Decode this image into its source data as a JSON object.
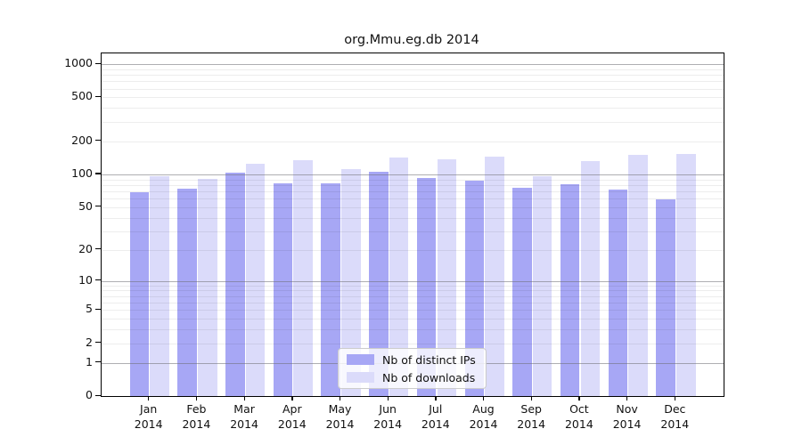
{
  "page": {
    "background": "#ffffff"
  },
  "title": "org.Mmu.eg.db 2014",
  "colors": {
    "distinct_ips_bar": "#a7a7f5",
    "downloads_bar": "#dbdbfa",
    "major_gridline": "#6e6e73",
    "minor_gridline": "#ededed",
    "axis": "#000000"
  },
  "legend": {
    "items": [
      {
        "label": "Nb of distinct IPs",
        "swatch_color": "#a7a7f5"
      },
      {
        "label": "Nb of downloads",
        "swatch_color": "#dbdbfa"
      }
    ]
  },
  "chart_data": {
    "type": "bar",
    "title": "org.Mmu.eg.db 2014",
    "year_label": "2014",
    "categories": [
      "Jan",
      "Feb",
      "Mar",
      "Apr",
      "May",
      "Jun",
      "Jul",
      "Aug",
      "Sep",
      "Oct",
      "Nov",
      "Dec"
    ],
    "series": [
      {
        "name": "Nb of distinct IPs",
        "color": "#a7a7f5",
        "values": [
          68,
          74,
          104,
          82,
          83,
          105,
          92,
          88,
          75,
          81,
          73,
          59
        ]
      },
      {
        "name": "Nb of downloads",
        "color": "#dbdbfa",
        "values": [
          97,
          91,
          125,
          135,
          112,
          142,
          137,
          144,
          96,
          133,
          150,
          154
        ]
      }
    ],
    "xlabel": "",
    "ylabel": "",
    "ytick_labels": [
      1000,
      500,
      200,
      100,
      50,
      20,
      10,
      5,
      2,
      1,
      0
    ],
    "minor_grid_values": [
      2,
      3,
      4,
      5,
      6,
      7,
      8,
      9,
      20,
      30,
      40,
      50,
      60,
      70,
      80,
      90,
      200,
      300,
      400,
      500,
      600,
      700,
      800,
      900
    ],
    "major_grid_values": [
      1,
      10,
      100,
      1000
    ],
    "yscale": "log10(value+1), zero pinned to baseline",
    "ylim": [
      0,
      1000
    ],
    "grid": true,
    "legend_position": "bottom-center"
  }
}
